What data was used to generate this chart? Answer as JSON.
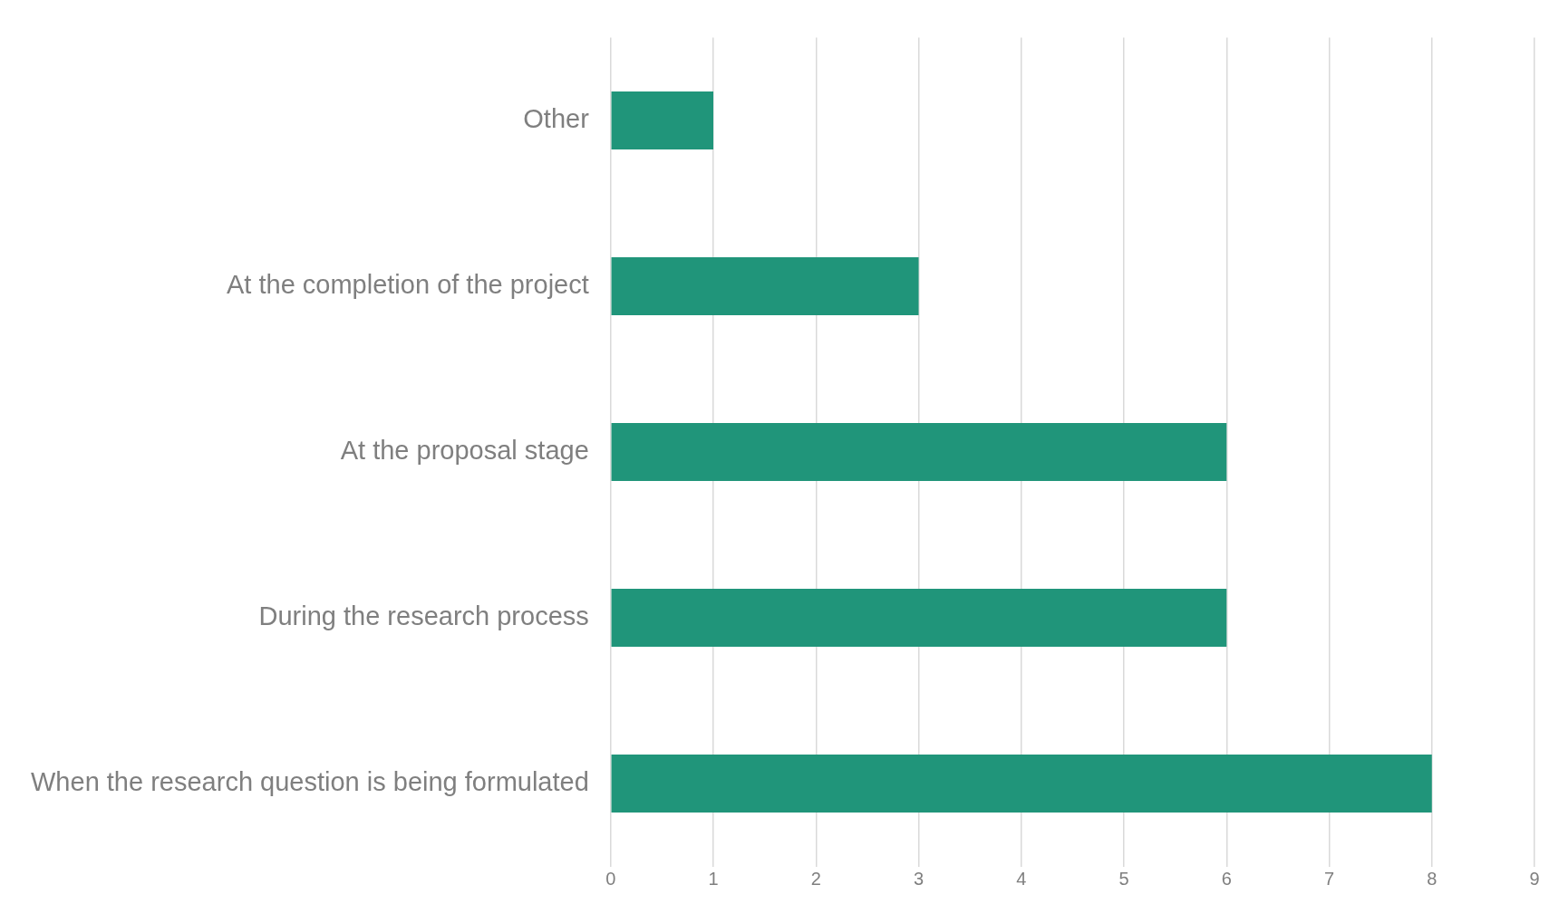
{
  "chart_data": {
    "type": "bar",
    "orientation": "horizontal",
    "categories": [
      "Other",
      "At the completion of the project",
      "At the proposal stage",
      "During the research process",
      "When the research question is being formulated"
    ],
    "values": [
      1,
      3,
      6,
      6,
      8
    ],
    "color": "#20957a",
    "xlim": [
      0,
      9
    ],
    "xticks": [
      0,
      1,
      2,
      3,
      4,
      5,
      6,
      7,
      8,
      9
    ],
    "grid": "x",
    "legend": false
  }
}
